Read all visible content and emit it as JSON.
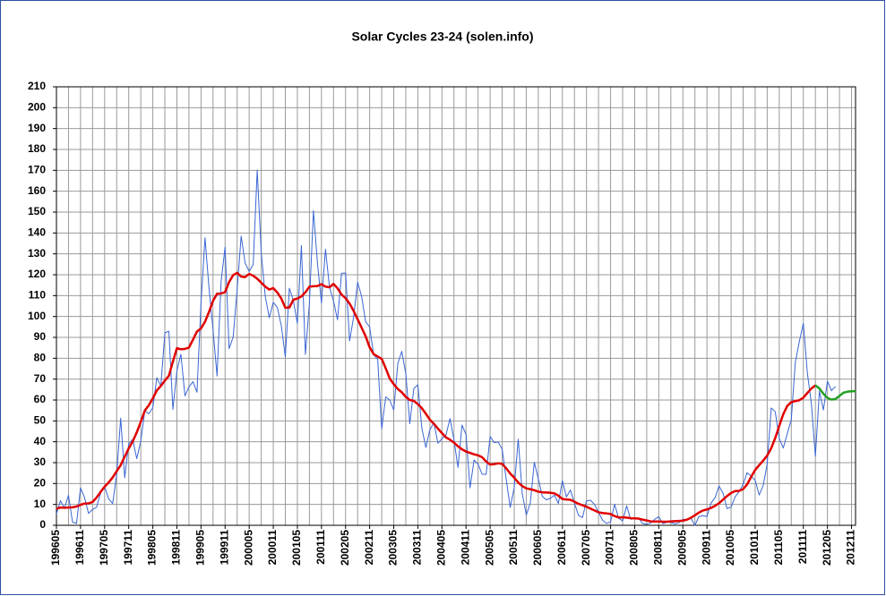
{
  "chart_data": {
    "type": "line",
    "title": "Solar Cycles 23-24 (solen.info)",
    "categories": [
      "199605",
      null,
      null,
      null,
      null,
      null,
      "199611",
      null,
      null,
      null,
      null,
      null,
      "199705",
      null,
      null,
      null,
      null,
      null,
      "199711",
      null,
      null,
      null,
      null,
      null,
      "199805",
      null,
      null,
      null,
      null,
      null,
      "199811",
      null,
      null,
      null,
      null,
      null,
      "199905",
      null,
      null,
      null,
      null,
      null,
      "199911",
      null,
      null,
      null,
      null,
      null,
      "200005",
      null,
      null,
      null,
      null,
      null,
      "200011",
      null,
      null,
      null,
      null,
      null,
      "200105",
      null,
      null,
      null,
      null,
      null,
      "200111",
      null,
      null,
      null,
      null,
      null,
      "200205",
      null,
      null,
      null,
      null,
      null,
      "200211",
      null,
      null,
      null,
      null,
      null,
      "200305",
      null,
      null,
      null,
      null,
      null,
      "200311",
      null,
      null,
      null,
      null,
      null,
      "200405",
      null,
      null,
      null,
      null,
      null,
      "200411",
      null,
      null,
      null,
      null,
      null,
      "200505",
      null,
      null,
      null,
      null,
      null,
      "200511",
      null,
      null,
      null,
      null,
      null,
      "200605",
      null,
      null,
      null,
      null,
      null,
      "200611",
      null,
      null,
      null,
      null,
      null,
      "200705",
      null,
      null,
      null,
      null,
      null,
      "200711",
      null,
      null,
      null,
      null,
      null,
      "200805",
      null,
      null,
      null,
      null,
      null,
      "200811",
      null,
      null,
      null,
      null,
      null,
      "200905",
      null,
      null,
      null,
      null,
      null,
      "200911",
      null,
      null,
      null,
      null,
      null,
      "201005",
      null,
      null,
      null,
      null,
      null,
      "201011",
      null,
      null,
      null,
      null,
      null,
      "201105",
      null,
      null,
      null,
      null,
      null,
      "201111",
      null,
      null,
      null,
      null,
      null,
      "201205",
      null,
      null,
      null,
      null,
      null,
      "201211",
      null
    ],
    "series": [
      {
        "color": "#3a66d4",
        "width": 1,
        "values": [
          5.5,
          11.8,
          8.2,
          14.4,
          1.6,
          0.9,
          17.9,
          13.3,
          5.7,
          7.6,
          8.7,
          15.5,
          18.5,
          12.7,
          10.4,
          24.4,
          51.3,
          22.8,
          39.0,
          41.2,
          31.9,
          40.3,
          54.8,
          53.4,
          56.3,
          70.7,
          66.6,
          92.2,
          92.9,
          55.5,
          74.0,
          81.9,
          62.0,
          66.3,
          68.8,
          63.7,
          106.4,
          137.7,
          113.5,
          93.7,
          71.5,
          116.7,
          133.2,
          84.6,
          90.1,
          112.9,
          138.5,
          125.5,
          121.6,
          124.9,
          170.1,
          130.5,
          109.7,
          99.4,
          106.8,
          104.4,
          95.6,
          80.6,
          113.5,
          107.7,
          96.6,
          134.0,
          81.8,
          106.4,
          150.7,
          125.5,
          106.5,
          132.2,
          114.1,
          107.4,
          98.4,
          120.7,
          120.8,
          88.3,
          99.6,
          116.4,
          109.6,
          97.5,
          95.0,
          81.6,
          79.5,
          46.2,
          61.5,
          60.0,
          55.2,
          77.4,
          83.3,
          72.7,
          48.7,
          65.5,
          67.3,
          46.5,
          37.3,
          45.8,
          49.1,
          39.3,
          41.5,
          43.2,
          51.1,
          40.9,
          27.7,
          48.0,
          43.5,
          17.9,
          31.3,
          29.2,
          24.5,
          24.4,
          42.6,
          39.6,
          39.9,
          36.4,
          22.1,
          8.5,
          18.0,
          41.2,
          15.3,
          4.9,
          10.6,
          30.2,
          22.3,
          13.9,
          12.2,
          12.9,
          14.4,
          10.5,
          21.4,
          13.6,
          16.9,
          10.6,
          4.8,
          3.7,
          11.7,
          12.0,
          10.0,
          6.2,
          2.4,
          0.9,
          1.7,
          10.1,
          3.4,
          2.1,
          9.3,
          2.9,
          3.2,
          3.4,
          0.8,
          0.5,
          1.1,
          2.9,
          4.1,
          0.8,
          1.5,
          1.4,
          0.7,
          1.2,
          2.9,
          2.6,
          3.5,
          0.0,
          4.2,
          4.6,
          4.2,
          10.6,
          13.2,
          18.8,
          15.4,
          8.0,
          8.7,
          13.6,
          16.1,
          19.6,
          25.2,
          23.5,
          21.6,
          14.5,
          19.0,
          29.4,
          56.2,
          54.4,
          41.6,
          37.0,
          43.9,
          50.6,
          78.0,
          88.0,
          96.7,
          73.0,
          58.3,
          33.1,
          64.3,
          55.2,
          69.0,
          64.5,
          66.5,
          null,
          null,
          null,
          null,
          null
        ]
      },
      {
        "color": "#e00000",
        "width": 2.5,
        "values": [
          8.0,
          8.5,
          8.4,
          8.5,
          8.6,
          9.0,
          9.8,
          10.4,
          10.5,
          11.2,
          13.3,
          16.0,
          18.5,
          20.5,
          22.9,
          25.9,
          28.8,
          32.9,
          36.8,
          40.2,
          44.5,
          49.5,
          54.9,
          57.5,
          60.8,
          64.6,
          66.7,
          69.3,
          71.6,
          78.4,
          84.8,
          84.3,
          84.5,
          85.1,
          88.9,
          92.8,
          94.3,
          97.5,
          102.2,
          107.5,
          110.9,
          111.0,
          111.7,
          116.5,
          119.8,
          120.9,
          119.1,
          118.9,
          120.4,
          119.5,
          118.1,
          116.2,
          114.3,
          112.9,
          113.6,
          111.5,
          108.6,
          104.2,
          104.3,
          108.0,
          108.6,
          109.6,
          111.6,
          114.3,
          114.5,
          114.6,
          115.5,
          114.3,
          114.0,
          115.6,
          113.5,
          110.5,
          108.8,
          106.2,
          102.7,
          98.7,
          94.6,
          90.5,
          85.2,
          82.0,
          80.8,
          79.7,
          75.2,
          70.3,
          67.6,
          65.3,
          63.7,
          61.5,
          60.0,
          59.6,
          58.0,
          56.1,
          53.4,
          50.6,
          48.6,
          46.3,
          44.2,
          42.1,
          41.0,
          39.6,
          37.8,
          36.4,
          35.3,
          34.7,
          34.0,
          33.5,
          32.6,
          30.6,
          29.1,
          29.3,
          29.7,
          29.4,
          27.3,
          24.8,
          22.8,
          20.5,
          18.8,
          17.7,
          17.3,
          16.8,
          16.1,
          15.8,
          15.7,
          15.6,
          15.3,
          14.2,
          12.6,
          12.4,
          12.2,
          11.3,
          10.3,
          9.6,
          8.9,
          8.0,
          7.1,
          6.2,
          5.9,
          5.7,
          5.4,
          4.4,
          3.8,
          3.8,
          3.7,
          3.4,
          3.3,
          3.2,
          2.7,
          2.3,
          1.9,
          1.8,
          1.8,
          1.7,
          1.7,
          1.9,
          2.0,
          2.1,
          2.2,
          2.7,
          3.6,
          4.8,
          6.1,
          7.1,
          7.6,
          8.3,
          9.3,
          10.6,
          12.3,
          14.0,
          15.5,
          16.4,
          16.5,
          17.3,
          19.6,
          23.2,
          26.5,
          28.8,
          31.0,
          33.4,
          36.9,
          41.8,
          47.6,
          53.2,
          57.2,
          59.0,
          59.5,
          59.9,
          61.1,
          63.4,
          65.5,
          67.0,
          null,
          null,
          null,
          null,
          null,
          null,
          null,
          null,
          null,
          null
        ]
      },
      {
        "color": "#22a022",
        "width": 2.5,
        "values": [
          null,
          null,
          null,
          null,
          null,
          null,
          null,
          null,
          null,
          null,
          null,
          null,
          null,
          null,
          null,
          null,
          null,
          null,
          null,
          null,
          null,
          null,
          null,
          null,
          null,
          null,
          null,
          null,
          null,
          null,
          null,
          null,
          null,
          null,
          null,
          null,
          null,
          null,
          null,
          null,
          null,
          null,
          null,
          null,
          null,
          null,
          null,
          null,
          null,
          null,
          null,
          null,
          null,
          null,
          null,
          null,
          null,
          null,
          null,
          null,
          null,
          null,
          null,
          null,
          null,
          null,
          null,
          null,
          null,
          null,
          null,
          null,
          null,
          null,
          null,
          null,
          null,
          null,
          null,
          null,
          null,
          null,
          null,
          null,
          null,
          null,
          null,
          null,
          null,
          null,
          null,
          null,
          null,
          null,
          null,
          null,
          null,
          null,
          null,
          null,
          null,
          null,
          null,
          null,
          null,
          null,
          null,
          null,
          null,
          null,
          null,
          null,
          null,
          null,
          null,
          null,
          null,
          null,
          null,
          null,
          null,
          null,
          null,
          null,
          null,
          null,
          null,
          null,
          null,
          null,
          null,
          null,
          null,
          null,
          null,
          null,
          null,
          null,
          null,
          null,
          null,
          null,
          null,
          null,
          null,
          null,
          null,
          null,
          null,
          null,
          null,
          null,
          null,
          null,
          null,
          null,
          null,
          null,
          null,
          null,
          null,
          null,
          null,
          null,
          null,
          null,
          null,
          null,
          null,
          null,
          null,
          null,
          null,
          null,
          null,
          null,
          null,
          null,
          null,
          null,
          null,
          null,
          null,
          null,
          null,
          null,
          null,
          null,
          null,
          67.0,
          65.5,
          63.0,
          61.0,
          60.2,
          60.5,
          62.0,
          63.5,
          64.0,
          64.2,
          64.3
        ]
      }
    ],
    "ylim": [
      0,
      210
    ],
    "yticks": [
      0,
      10,
      20,
      30,
      40,
      50,
      60,
      70,
      80,
      90,
      100,
      110,
      120,
      130,
      140,
      150,
      160,
      170,
      180,
      190,
      200,
      210
    ],
    "grid": true
  }
}
